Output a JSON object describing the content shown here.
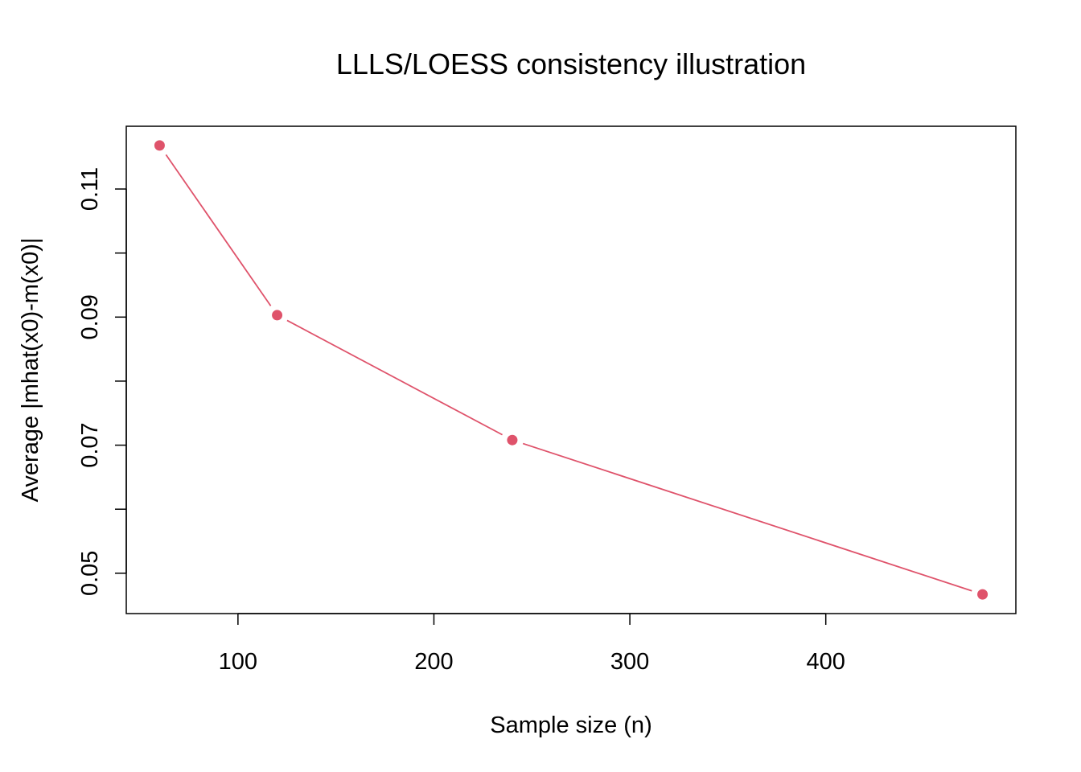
{
  "chart_data": {
    "type": "line",
    "title": "LLLS/LOESS consistency illustration",
    "xlabel": "Sample size (n)",
    "ylabel": "Average |mhat(x0)-m(x0)|",
    "x": [
      60,
      120,
      240,
      480
    ],
    "series": [
      {
        "values": [
          0.1168,
          0.0903,
          0.0708,
          0.0467
        ],
        "color": "#DF536B"
      }
    ],
    "xlim": [
      43,
      497
    ],
    "ylim": [
      0.0437,
      0.1198
    ],
    "xticks": [
      100,
      200,
      300,
      400
    ],
    "xtick_labels": [
      "100",
      "200",
      "300",
      "400"
    ],
    "yticks": [
      0.05,
      0.06,
      0.07,
      0.08,
      0.09,
      0.1,
      0.11
    ],
    "ytick_labels": [
      "0.05",
      "",
      "0.07",
      "",
      "0.09",
      "",
      "0.11"
    ],
    "marker": "filled-circle",
    "line_style": "solid",
    "grid": false,
    "legend": false
  }
}
